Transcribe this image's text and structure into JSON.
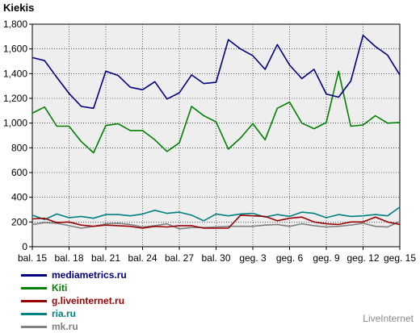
{
  "title": "Kiekis",
  "brand": "LiveInternet",
  "chart_data": {
    "type": "line",
    "ylim": [
      0,
      1800
    ],
    "yticks": [
      0,
      200,
      400,
      600,
      800,
      1000,
      1200,
      1400,
      1600,
      1800
    ],
    "ytick_labels": [
      "0",
      "200",
      "400",
      "600",
      "800",
      "1,000",
      "1,200",
      "1,400",
      "1,600",
      "1,800"
    ],
    "x_tick_labels": [
      "bal. 15",
      "bal. 18",
      "bal. 21",
      "bal. 24",
      "bal. 27",
      "bal. 30",
      "geg. 3",
      "geg. 6",
      "geg. 9",
      "geg. 12",
      "geg. 15"
    ],
    "grid": true,
    "legend_position": "bottom-left",
    "series": [
      {
        "name": "mediametrics.ru",
        "color": "#000080",
        "values": [
          1530,
          1505,
          1370,
          1240,
          1135,
          1120,
          1420,
          1385,
          1290,
          1270,
          1335,
          1195,
          1245,
          1390,
          1320,
          1330,
          1675,
          1600,
          1545,
          1435,
          1635,
          1470,
          1360,
          1435,
          1235,
          1210,
          1340,
          1710,
          1620,
          1550,
          1390
        ]
      },
      {
        "name": "Kiti",
        "color": "#008000",
        "values": [
          1080,
          1130,
          975,
          975,
          850,
          760,
          980,
          995,
          940,
          940,
          865,
          770,
          840,
          1135,
          1060,
          1010,
          790,
          880,
          995,
          865,
          1120,
          1170,
          1000,
          955,
          1005,
          1420,
          975,
          985,
          1060,
          1000,
          1005
        ]
      },
      {
        "name": "g.liveinternet.ru",
        "color": "#990000",
        "values": [
          225,
          230,
          195,
          200,
          175,
          165,
          175,
          170,
          165,
          150,
          165,
          160,
          170,
          170,
          150,
          150,
          150,
          255,
          250,
          245,
          210,
          230,
          240,
          200,
          185,
          180,
          200,
          200,
          240,
          200,
          180
        ]
      },
      {
        "name": "ria.ru",
        "color": "#008080",
        "values": [
          255,
          220,
          265,
          235,
          245,
          230,
          260,
          260,
          250,
          265,
          295,
          270,
          280,
          255,
          210,
          265,
          250,
          265,
          270,
          240,
          260,
          245,
          280,
          270,
          235,
          260,
          245,
          250,
          260,
          250,
          320
        ]
      },
      {
        "name": "mk.ru",
        "color": "#808080",
        "values": [
          180,
          195,
          190,
          170,
          150,
          165,
          185,
          190,
          180,
          160,
          170,
          185,
          145,
          155,
          155,
          160,
          165,
          165,
          165,
          175,
          180,
          165,
          185,
          170,
          160,
          165,
          175,
          190,
          165,
          160,
          205
        ]
      }
    ]
  }
}
